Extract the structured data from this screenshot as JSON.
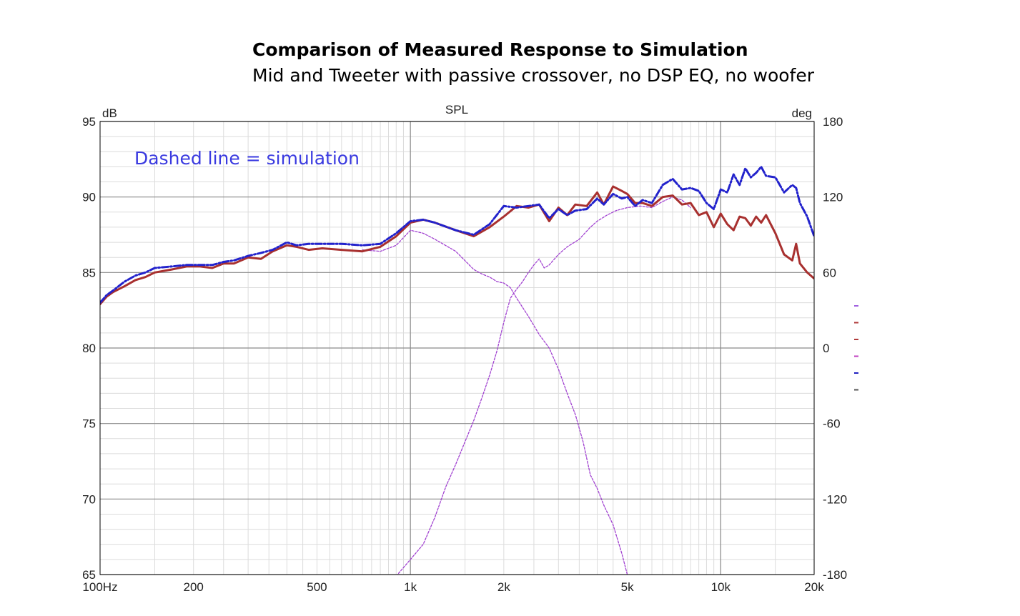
{
  "chart_data": {
    "type": "line",
    "title": "Comparison of Measured Response to Simulation",
    "subtitle": "Mid and Tweeter with passive crossover, no DSP EQ, no woofer",
    "plot_label": "SPL",
    "annotation": "Dashed line = simulation",
    "x_scale": "log",
    "xlim": [
      100,
      20000
    ],
    "ylim": [
      65,
      95
    ],
    "y2lim": [
      -180,
      180
    ],
    "ylabel": "dB",
    "y2label": "deg",
    "x_ticks": [
      {
        "value": 100,
        "label": "100Hz"
      },
      {
        "value": 200,
        "label": "200"
      },
      {
        "value": 500,
        "label": "500"
      },
      {
        "value": 1000,
        "label": "1k"
      },
      {
        "value": 2000,
        "label": "2k"
      },
      {
        "value": 5000,
        "label": "5k"
      },
      {
        "value": 10000,
        "label": "10k"
      },
      {
        "value": 20000,
        "label": "20k"
      }
    ],
    "y_ticks": [
      {
        "value": 95,
        "label": "95"
      },
      {
        "value": 90,
        "label": "90"
      },
      {
        "value": 85,
        "label": "85"
      },
      {
        "value": 80,
        "label": "80"
      },
      {
        "value": 75,
        "label": "75"
      },
      {
        "value": 70,
        "label": "70"
      },
      {
        "value": 65,
        "label": "65"
      }
    ],
    "y2_ticks": [
      {
        "value": 180,
        "label": "180"
      },
      {
        "value": 120,
        "label": "120"
      },
      {
        "value": 60,
        "label": "60"
      },
      {
        "value": 0,
        "label": "0"
      },
      {
        "value": -60,
        "label": "-60"
      },
      {
        "value": -120,
        "label": "-120"
      },
      {
        "value": -180,
        "label": "-180"
      }
    ],
    "grid": true,
    "legend_swatches": [
      "#a060e0",
      "#b03a3a",
      "#b03a3a",
      "#c040c0",
      "#2020c0",
      "#555555"
    ],
    "series": [
      {
        "color": "#a8302f",
        "style": "solid",
        "x": [
          100,
          105,
          110,
          120,
          130,
          140,
          150,
          170,
          190,
          210,
          230,
          250,
          270,
          300,
          330,
          360,
          400,
          430,
          470,
          520,
          600,
          700,
          800,
          900,
          1000,
          1100,
          1200,
          1400,
          1600,
          1800,
          2000,
          2200,
          2400,
          2600,
          2800,
          3000,
          3200,
          3400,
          3700,
          4000,
          4200,
          4500,
          4800,
          5000,
          5300,
          5600,
          6000,
          6500,
          7000,
          7500,
          8000,
          8500,
          9000,
          9500,
          10000,
          10500,
          11000,
          11500,
          12000,
          12500,
          13000,
          13500,
          14000,
          15000,
          16000,
          17000,
          17500,
          18000,
          19000,
          20000
        ],
        "values": [
          82.9,
          83.4,
          83.7,
          84.1,
          84.5,
          84.7,
          85.0,
          85.2,
          85.4,
          85.4,
          85.3,
          85.6,
          85.6,
          86.0,
          85.9,
          86.4,
          86.8,
          86.7,
          86.5,
          86.6,
          86.5,
          86.4,
          86.7,
          87.4,
          88.3,
          88.5,
          88.3,
          87.8,
          87.4,
          88.0,
          88.7,
          89.4,
          89.3,
          89.5,
          88.4,
          89.3,
          88.8,
          89.5,
          89.4,
          90.3,
          89.5,
          90.7,
          90.4,
          90.2,
          89.6,
          89.6,
          89.4,
          90.0,
          90.1,
          89.5,
          89.6,
          88.8,
          89.0,
          88.0,
          88.9,
          88.2,
          87.8,
          88.7,
          88.6,
          88.1,
          88.7,
          88.3,
          88.8,
          87.6,
          86.2,
          85.8,
          86.9,
          85.6,
          85.0,
          84.6
        ]
      },
      {
        "color": "#2222cc",
        "style": "dash-dot",
        "x": [
          100,
          105,
          110,
          120,
          130,
          140,
          150,
          170,
          190,
          210,
          230,
          250,
          270,
          300,
          330,
          360,
          400,
          430,
          470,
          520,
          600,
          700,
          800,
          900,
          1000,
          1100,
          1200,
          1400,
          1600,
          1800,
          2000,
          2200,
          2400,
          2600,
          2800,
          3000,
          3200,
          3400,
          3700,
          4000,
          4200,
          4500,
          4800,
          5000,
          5300,
          5600,
          6000,
          6500,
          7000,
          7500,
          8000,
          8500,
          9000,
          9500,
          10000,
          10500,
          11000,
          11500,
          12000,
          12500,
          13000,
          13500,
          14000,
          15000,
          16000,
          17000,
          17500,
          18000,
          19000,
          20000
        ],
        "values": [
          83.0,
          83.5,
          83.8,
          84.4,
          84.8,
          85.0,
          85.3,
          85.4,
          85.5,
          85.5,
          85.5,
          85.7,
          85.8,
          86.1,
          86.3,
          86.5,
          87.0,
          86.8,
          86.9,
          86.9,
          86.9,
          86.8,
          86.9,
          87.6,
          88.4,
          88.5,
          88.3,
          87.8,
          87.5,
          88.2,
          89.4,
          89.3,
          89.4,
          89.5,
          88.6,
          89.2,
          88.8,
          89.1,
          89.2,
          89.9,
          89.5,
          90.2,
          89.9,
          90.0,
          89.4,
          89.8,
          89.6,
          90.8,
          91.2,
          90.5,
          90.6,
          90.4,
          89.6,
          89.2,
          90.5,
          90.3,
          91.5,
          90.8,
          91.9,
          91.3,
          91.6,
          92.0,
          91.4,
          91.3,
          90.3,
          90.8,
          90.6,
          89.6,
          88.7,
          87.4
        ]
      },
      {
        "color": "#a040d0",
        "style": "thin-dotted",
        "x": [
          700,
          800,
          900,
          1000,
          1100,
          1200,
          1400,
          1600,
          1700,
          1800,
          1900,
          2000,
          2100,
          2200,
          2400,
          2600,
          2800,
          3000,
          3200,
          3400,
          3600,
          3800,
          4000,
          4200,
          4500,
          4800,
          5000,
          5500,
          6000,
          6500,
          7000
        ],
        "values": [
          86.5,
          86.4,
          86.8,
          87.8,
          87.6,
          87.2,
          86.4,
          85.2,
          84.9,
          84.7,
          84.4,
          84.3,
          84.0,
          83.3,
          82.1,
          80.9,
          80.0,
          78.6,
          77.0,
          75.6,
          73.8,
          71.6,
          70.7,
          69.6,
          68.3,
          66.4,
          65.0,
          64.0,
          63.0,
          62.0,
          61.0
        ]
      },
      {
        "color": "#a040d0",
        "style": "thin-dotted",
        "x": [
          900,
          1000,
          1100,
          1200,
          1300,
          1400,
          1500,
          1600,
          1700,
          1800,
          1900,
          2000,
          2100,
          2200,
          2300,
          2400,
          2500,
          2600,
          2700,
          2800,
          3000,
          3200,
          3500,
          3800,
          4000,
          4300,
          4600,
          5000,
          5500,
          6000,
          6500,
          7000,
          7500,
          8000
        ],
        "values": [
          64.9,
          66.0,
          67.0,
          68.8,
          70.8,
          72.3,
          73.8,
          75.2,
          76.7,
          78.2,
          79.8,
          81.7,
          83.3,
          83.9,
          84.4,
          85.0,
          85.5,
          85.9,
          85.3,
          85.5,
          86.2,
          86.7,
          87.2,
          88.0,
          88.4,
          88.8,
          89.1,
          89.3,
          89.4,
          89.3,
          89.7,
          90.0,
          89.8,
          89.3
        ]
      }
    ]
  }
}
